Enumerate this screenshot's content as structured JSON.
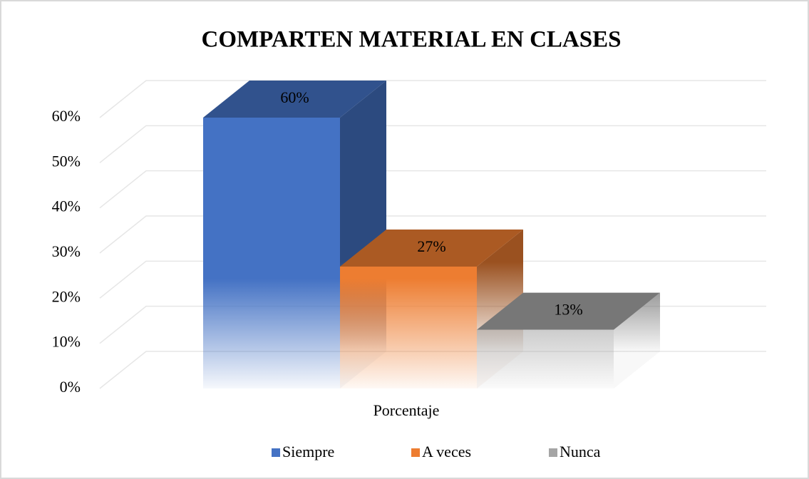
{
  "chart_data": {
    "type": "bar3d",
    "title": "COMPARTEN MATERIAL EN CLASES",
    "categories": [
      "Porcentaje"
    ],
    "series": [
      {
        "name": "Siempre",
        "color": "#4472c4",
        "values": [
          60
        ],
        "value_labels": [
          "60%"
        ]
      },
      {
        "name": "A veces",
        "color": "#ed7d31",
        "values": [
          27
        ],
        "value_labels": [
          "27%"
        ]
      },
      {
        "name": "Nunca",
        "color": "#a5a5a5",
        "values": [
          13
        ],
        "value_labels": [
          "13%"
        ]
      }
    ],
    "ylim": [
      0,
      60
    ],
    "yticks": [
      {
        "value": 0,
        "label": "0%"
      },
      {
        "value": 10,
        "label": "10%"
      },
      {
        "value": 20,
        "label": "20%"
      },
      {
        "value": 30,
        "label": "30%"
      },
      {
        "value": 40,
        "label": "40%"
      },
      {
        "value": 50,
        "label": "50%"
      },
      {
        "value": 60,
        "label": "60%"
      }
    ],
    "grid": true,
    "legend": "bottom"
  }
}
